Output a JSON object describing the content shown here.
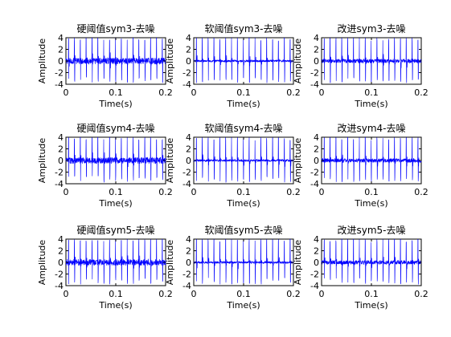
{
  "colors": {
    "signal": "#0000ff",
    "axes": "#000000",
    "background": "#ffffff"
  },
  "chart_data": [
    {
      "type": "line",
      "title": "硬阈值sym3-去噪",
      "xlabel": "Time(s)",
      "ylabel": "Amplitude",
      "xlim": [
        0,
        0.2
      ],
      "ylim": [
        -4,
        4
      ],
      "xticks": [
        "0",
        "0.1",
        "0.2"
      ],
      "yticks": [
        "-4",
        "-2",
        "0",
        "2",
        "4"
      ],
      "grid": false,
      "series": [
        {
          "method": "hard",
          "wavelet": "sym3"
        }
      ]
    },
    {
      "type": "line",
      "title": "软阈值sym3-去噪",
      "xlabel": "Time(s)",
      "ylabel": "Amplitude",
      "xlim": [
        0,
        0.2
      ],
      "ylim": [
        -4,
        4
      ],
      "xticks": [
        "0",
        "0.1",
        "0.2"
      ],
      "yticks": [
        "-4",
        "-2",
        "0",
        "2",
        "4"
      ],
      "grid": false,
      "series": [
        {
          "method": "soft",
          "wavelet": "sym3"
        }
      ]
    },
    {
      "type": "line",
      "title": "改进sym3-去噪",
      "xlabel": "Time(s)",
      "ylabel": "Amplitude",
      "xlim": [
        0,
        0.2
      ],
      "ylim": [
        -4,
        4
      ],
      "xticks": [
        "0",
        "0.1",
        "0.2"
      ],
      "yticks": [
        "-4",
        "-2",
        "0",
        "2",
        "4"
      ],
      "grid": false,
      "series": [
        {
          "method": "improved",
          "wavelet": "sym3"
        }
      ]
    },
    {
      "type": "line",
      "title": "硬阈值sym4-去噪",
      "xlabel": "Time(s)",
      "ylabel": "Amplitude",
      "xlim": [
        0,
        0.2
      ],
      "ylim": [
        -4,
        4
      ],
      "xticks": [
        "0",
        "0.1",
        "0.2"
      ],
      "yticks": [
        "-4",
        "-2",
        "0",
        "2",
        "4"
      ],
      "grid": false,
      "series": [
        {
          "method": "hard",
          "wavelet": "sym4"
        }
      ]
    },
    {
      "type": "line",
      "title": "软阈值sym4-去噪",
      "xlabel": "Time(s)",
      "ylabel": "Amplitude",
      "xlim": [
        0,
        0.2
      ],
      "ylim": [
        -4,
        4
      ],
      "xticks": [
        "0",
        "0.1",
        "0.2"
      ],
      "yticks": [
        "-4",
        "-2",
        "0",
        "2",
        "4"
      ],
      "grid": false,
      "series": [
        {
          "method": "soft",
          "wavelet": "sym4"
        }
      ]
    },
    {
      "type": "line",
      "title": "改进sym4-去噪",
      "xlabel": "Time(s)",
      "ylabel": "Amplitude",
      "xlim": [
        0,
        0.2
      ],
      "ylim": [
        -4,
        4
      ],
      "xticks": [
        "0",
        "0.1",
        "0.2"
      ],
      "yticks": [
        "-4",
        "-2",
        "0",
        "2",
        "4"
      ],
      "grid": false,
      "series": [
        {
          "method": "improved",
          "wavelet": "sym4"
        }
      ]
    },
    {
      "type": "line",
      "title": "硬阈值sym5-去噪",
      "xlabel": "Time(s)",
      "ylabel": "Amplitude",
      "xlim": [
        0,
        0.2
      ],
      "ylim": [
        -4,
        4
      ],
      "xticks": [
        "0",
        "0.1",
        "0.2"
      ],
      "yticks": [
        "-4",
        "-2",
        "0",
        "2",
        "4"
      ],
      "grid": false,
      "series": [
        {
          "method": "hard",
          "wavelet": "sym5"
        }
      ]
    },
    {
      "type": "line",
      "title": "软阈值sym5-去噪",
      "xlabel": "Time(s)",
      "ylabel": "Amplitude",
      "xlim": [
        0,
        0.2
      ],
      "ylim": [
        -4,
        4
      ],
      "xticks": [
        "0",
        "0.1",
        "0.2"
      ],
      "yticks": [
        "-4",
        "-2",
        "0",
        "2",
        "4"
      ],
      "grid": false,
      "series": [
        {
          "method": "soft",
          "wavelet": "sym5"
        }
      ]
    },
    {
      "type": "line",
      "title": "改进sym5-去噪",
      "xlabel": "Time(s)",
      "ylabel": "Amplitude",
      "xlim": [
        0,
        0.2
      ],
      "ylim": [
        -4,
        4
      ],
      "xticks": [
        "0",
        "0.1",
        "0.2"
      ],
      "yticks": [
        "-4",
        "-2",
        "0",
        "2",
        "4"
      ],
      "grid": false,
      "series": [
        {
          "method": "improved",
          "wavelet": "sym5"
        }
      ]
    }
  ]
}
